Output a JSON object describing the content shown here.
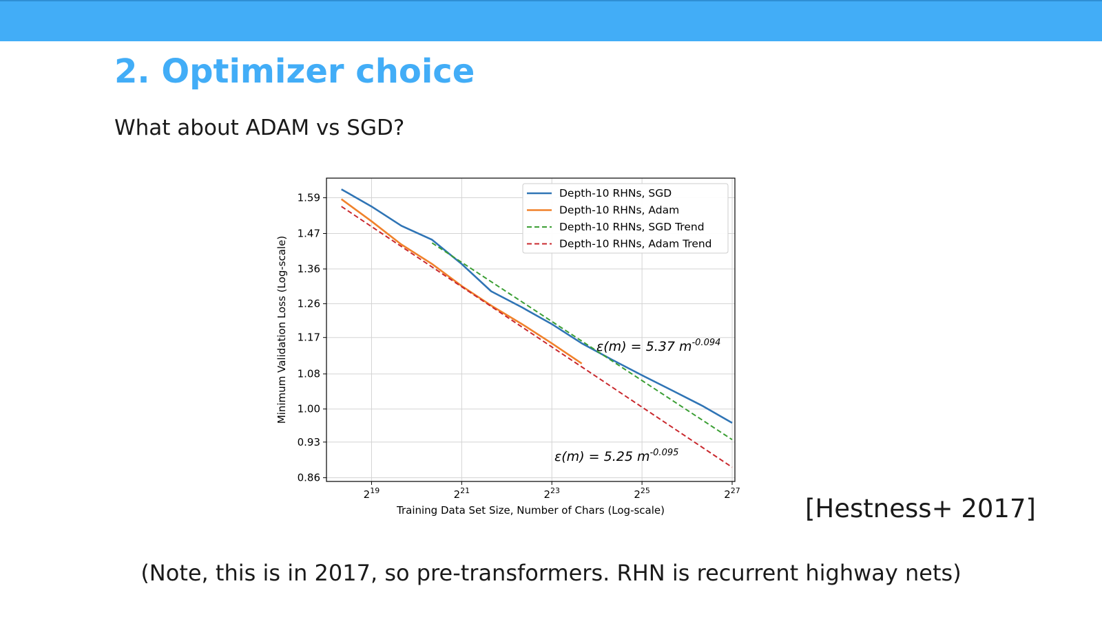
{
  "slide": {
    "title": "2. Optimizer choice",
    "subtitle": "What about ADAM vs SGD?",
    "citation": "[Hestness+ 2017]",
    "note": "(Note, this is in 2017, so pre-transformers. RHN is recurrent highway nets)"
  },
  "colors": {
    "header_bar": "#42adf7",
    "title": "#42adf7"
  },
  "chart_data": {
    "type": "line",
    "xlabel": "Training Data Set Size, Number of Chars (Log-scale)",
    "ylabel": "Minimum Validation Loss (Log-scale)",
    "x_scale": "log2",
    "y_scale": "log",
    "xlim": [
      262144,
      140000000
    ],
    "ylim": [
      0.853,
      1.66
    ],
    "x_ticks": [
      {
        "value": 524288,
        "base": "2",
        "exp": "19"
      },
      {
        "value": 2097152,
        "base": "2",
        "exp": "21"
      },
      {
        "value": 8388608,
        "base": "2",
        "exp": "23"
      },
      {
        "value": 33554432,
        "base": "2",
        "exp": "25"
      },
      {
        "value": 134217728,
        "base": "2",
        "exp": "27"
      }
    ],
    "y_ticks": [
      "0.86",
      "0.93",
      "1.00",
      "1.08",
      "1.17",
      "1.26",
      "1.36",
      "1.47",
      "1.59"
    ],
    "grid": true,
    "legend_position": "top-right",
    "series": [
      {
        "name": "Depth-10 RHNs, SGD",
        "color": "#2f74b5",
        "style": "solid",
        "x": [
          330000,
          524288,
          830000,
          1330000,
          2097152,
          3300000,
          5300000,
          8388608,
          13300000,
          21000000,
          33554432,
          53000000,
          85000000,
          134217728
        ],
        "y": [
          1.62,
          1.56,
          1.495,
          1.45,
          1.375,
          1.295,
          1.25,
          1.205,
          1.155,
          1.115,
          1.077,
          1.042,
          1.007,
          0.97
        ]
      },
      {
        "name": "Depth-10 RHNs, Adam",
        "color": "#f0812a",
        "style": "solid",
        "x": [
          330000,
          524288,
          830000,
          1330000,
          2097152,
          3300000,
          5300000,
          8388608,
          13300000
        ],
        "y": [
          1.585,
          1.51,
          1.435,
          1.375,
          1.31,
          1.255,
          1.205,
          1.155,
          1.105
        ]
      },
      {
        "name": "Depth-10 RHNs, SGD Trend",
        "color": "#3a9e33",
        "style": "dashed",
        "x": [
          1330000,
          134217728
        ],
        "y": [
          1.44,
          0.935
        ]
      },
      {
        "name": "Depth-10 RHNs, Adam Trend",
        "color": "#c9282d",
        "style": "dashed",
        "x": [
          330000,
          134217728
        ],
        "y": [
          1.56,
          0.88
        ]
      }
    ],
    "annotations": [
      {
        "base": "ε(m) = 5.37 m",
        "exp": "-0.094"
      },
      {
        "base": "ε(m) = 5.25 m",
        "exp": "-0.095"
      }
    ]
  }
}
